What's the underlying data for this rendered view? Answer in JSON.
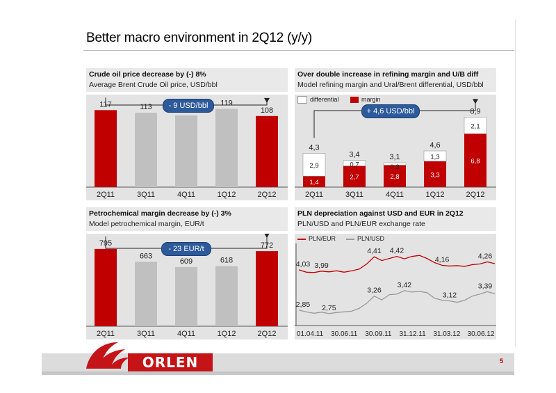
{
  "page": {
    "title": "Better macro environment in 2Q12 (y/y)",
    "page_number": "5",
    "logo_text": "ORLEN"
  },
  "colors": {
    "red": "#c00000",
    "grey": "#c0c0c0",
    "blue": "#2d5a9a",
    "panel_bg": "#e3e3e3"
  },
  "chart_data": [
    {
      "type": "bar",
      "title": "Crude oil price decrease by (-) 8%",
      "subtitle": "Average Brent Crude Oil price, USD/bbl",
      "categories": [
        "2Q11",
        "3Q11",
        "4Q11",
        "1Q12",
        "2Q12"
      ],
      "values": [
        117,
        113,
        109,
        119,
        108
      ],
      "labels": [
        "117",
        "113",
        "109",
        "119",
        "108"
      ],
      "highlight": [
        true,
        false,
        false,
        false,
        true
      ],
      "ylim": [
        0,
        130
      ],
      "callout": "- 9 USD/bbl"
    },
    {
      "type": "bar",
      "title": "Over double increase in refining margin and U/B diff",
      "subtitle": "Model refining margin and Ural/Brent differential, USD/bbl",
      "categories": [
        "2Q11",
        "3Q11",
        "4Q11",
        "1Q12",
        "2Q12"
      ],
      "series": [
        {
          "name": "margin",
          "values": [
            1.4,
            2.7,
            2.8,
            3.3,
            6.8
          ],
          "labels": [
            "1,4",
            "2,7",
            "2,8",
            "3,3",
            "6,8"
          ]
        },
        {
          "name": "differential",
          "values": [
            2.9,
            0.7,
            0.3,
            1.3,
            2.1
          ],
          "labels": [
            "2,9",
            "0,7",
            "0,3",
            "1,3",
            "2,1"
          ]
        }
      ],
      "totals": [
        4.3,
        3.4,
        3.1,
        4.6,
        8.9
      ],
      "total_labels": [
        "4,3",
        "3,4",
        "3,1",
        "4,6",
        "8,9"
      ],
      "ylim": [
        0,
        10
      ],
      "legend": [
        "differential",
        "margin"
      ],
      "callout": "+ 4,6 USD/bbl"
    },
    {
      "type": "bar",
      "title": "Petrochemical margin decrease by (-) 3%",
      "subtitle": "Model petrochemical margin, EUR/t",
      "categories": [
        "2Q11",
        "3Q11",
        "4Q11",
        "1Q12",
        "2Q12"
      ],
      "values": [
        795,
        663,
        609,
        618,
        772
      ],
      "labels": [
        "795",
        "663",
        "609",
        "618",
        "772"
      ],
      "highlight": [
        true,
        false,
        false,
        false,
        true
      ],
      "ylim": [
        0,
        880
      ],
      "callout": "- 23 EUR/t"
    },
    {
      "type": "line",
      "title": "PLN depreciation against USD and EUR in 2Q12",
      "subtitle": "PLN/USD and PLN/EUR exchange rate",
      "x_labels": [
        "01.04.11",
        "30.06.11",
        "30.09.11",
        "31.12.11",
        "31.03.12",
        "30.06.12"
      ],
      "legend": [
        "PLN/EUR",
        "PLN/USD"
      ],
      "ylim": [
        2.4,
        4.8
      ],
      "series": [
        {
          "name": "PLN/EUR",
          "points": [
            4.03,
            3.96,
            3.95,
            3.99,
            3.97,
            4.0,
            3.96,
            4.0,
            4.05,
            4.2,
            4.41,
            4.3,
            4.36,
            4.42,
            4.35,
            4.42,
            4.45,
            4.36,
            4.24,
            4.16,
            4.14,
            4.15,
            4.13,
            4.18,
            4.2,
            4.26,
            4.21
          ],
          "annotations": [
            {
              "index": 0,
              "label": "4,03"
            },
            {
              "index": 3,
              "label": "3,99"
            },
            {
              "index": 10,
              "label": "4,41"
            },
            {
              "index": 13,
              "label": "4,42"
            },
            {
              "index": 19,
              "label": "4,16"
            },
            {
              "index": 25,
              "label": "4,26"
            }
          ]
        },
        {
          "name": "PLN/USD",
          "points": [
            2.85,
            2.8,
            2.76,
            2.79,
            2.75,
            2.78,
            2.8,
            2.82,
            2.9,
            3.05,
            3.26,
            3.15,
            3.3,
            3.32,
            3.42,
            3.38,
            3.4,
            3.36,
            3.2,
            3.14,
            3.12,
            3.08,
            3.14,
            3.26,
            3.32,
            3.39,
            3.33
          ],
          "annotations": [
            {
              "index": 0,
              "label": "2,85"
            },
            {
              "index": 4,
              "label": "2,75"
            },
            {
              "index": 10,
              "label": "3,26"
            },
            {
              "index": 14,
              "label": "3,42"
            },
            {
              "index": 20,
              "label": "3,12"
            },
            {
              "index": 25,
              "label": "3,39"
            }
          ]
        }
      ]
    }
  ]
}
